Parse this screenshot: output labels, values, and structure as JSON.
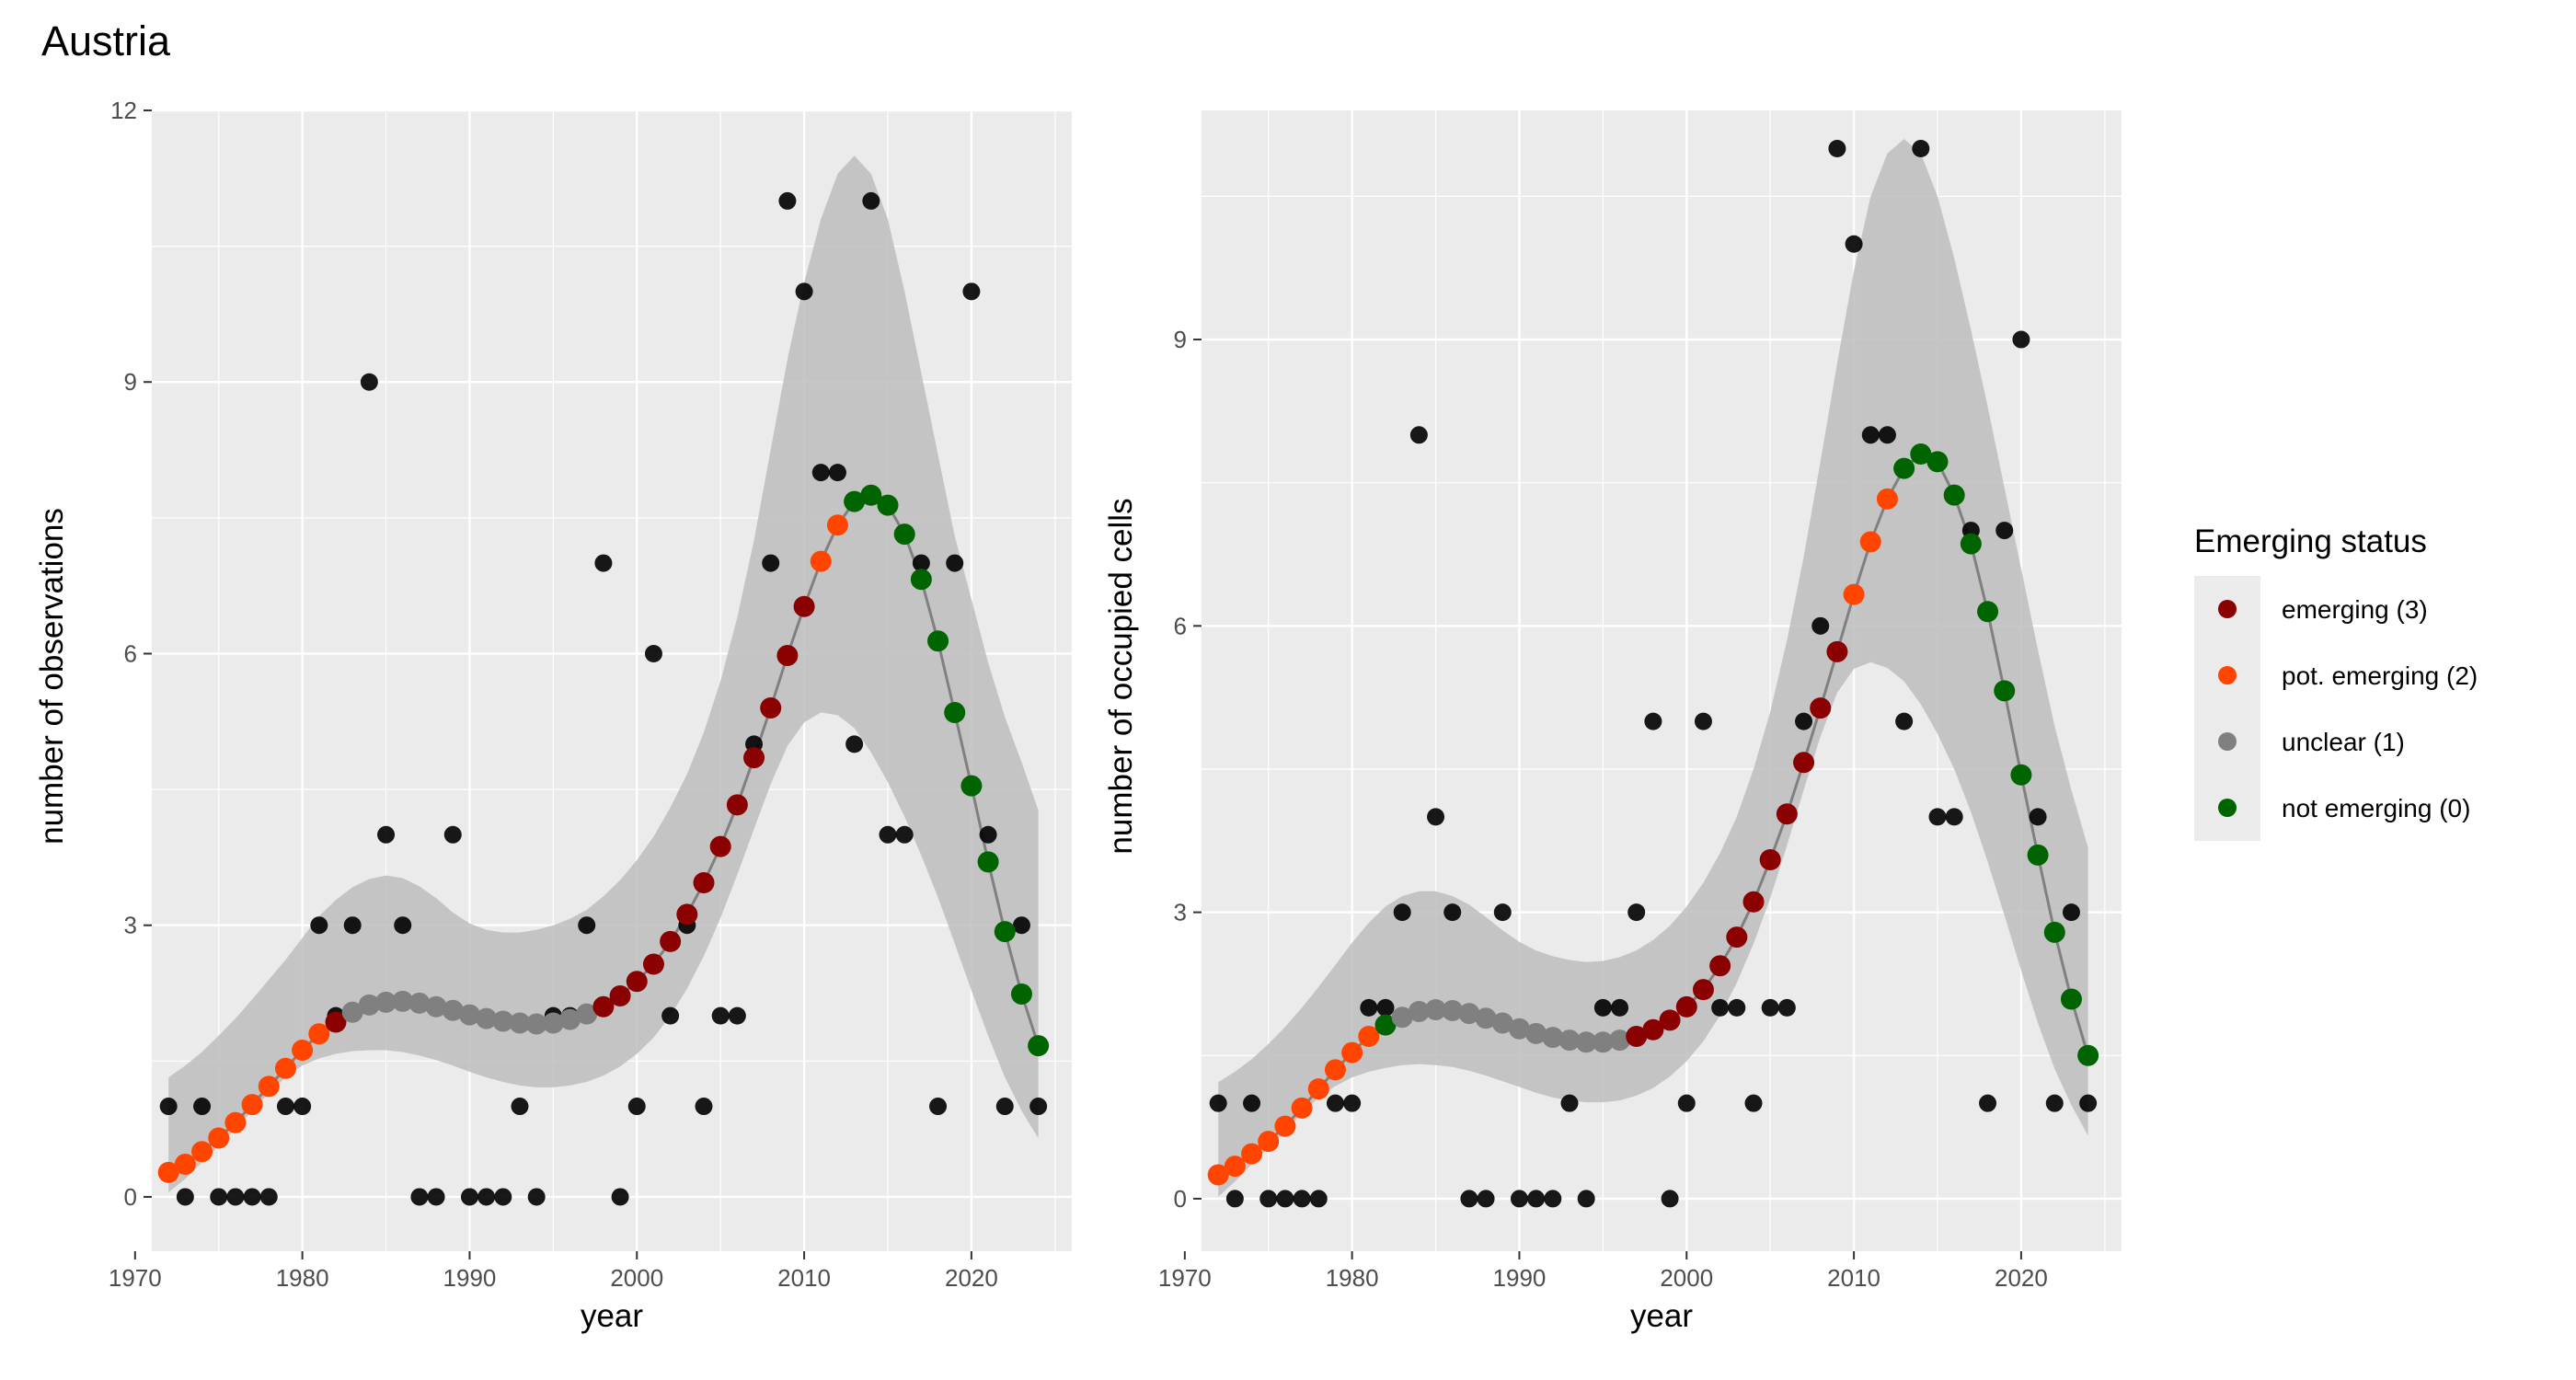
{
  "title": "Austria",
  "legend": {
    "title": "Emerging status",
    "placement": "right",
    "items": [
      {
        "label": "emerging (3)",
        "color": "#8b0000"
      },
      {
        "label": "pot. emerging (2)",
        "color": "#ff4500"
      },
      {
        "label": "unclear (1)",
        "color": "#808080"
      },
      {
        "label": "not emerging (0)",
        "color": "#006400"
      }
    ]
  },
  "colors": {
    "panel_bg": "#ebebeb",
    "grid": "#ffffff",
    "ribbon": "#bdbdbd",
    "trend_line": "#808080",
    "observed_points": "#000000"
  },
  "chart_data": [
    {
      "type": "scatter",
      "xlabel": "year",
      "ylabel": "number of observations",
      "xlim": [
        1971,
        2026
      ],
      "ylim": [
        -0.6,
        12
      ],
      "xticks": [
        1970,
        1980,
        1990,
        2000,
        2010,
        2020
      ],
      "yticks": [
        0,
        3,
        6,
        9,
        12
      ],
      "grid": true,
      "observed": {
        "x": [
          1972,
          1973,
          1974,
          1975,
          1976,
          1977,
          1978,
          1979,
          1980,
          1981,
          1982,
          1983,
          1984,
          1985,
          1986,
          1987,
          1988,
          1989,
          1990,
          1991,
          1992,
          1993,
          1994,
          1995,
          1996,
          1997,
          1998,
          1999,
          2000,
          2001,
          2002,
          2003,
          2004,
          2005,
          2006,
          2007,
          2008,
          2009,
          2010,
          2011,
          2012,
          2013,
          2014,
          2015,
          2016,
          2017,
          2018,
          2019,
          2020,
          2021,
          2022,
          2023,
          2024
        ],
        "y": [
          1,
          0,
          1,
          0,
          0,
          0,
          0,
          1,
          1,
          3,
          2,
          3,
          9,
          4,
          3,
          0,
          0,
          4,
          0,
          0,
          0,
          1,
          0,
          2,
          2,
          3,
          7,
          0,
          1,
          6,
          2,
          3,
          1,
          2,
          2,
          5,
          7,
          11,
          10,
          8,
          8,
          5,
          11,
          4,
          4,
          7,
          1,
          7,
          10,
          4,
          1,
          3,
          1
        ]
      },
      "trend": {
        "x": [
          1972,
          1973,
          1974,
          1975,
          1976,
          1977,
          1978,
          1979,
          1980,
          1981,
          1982,
          1983,
          1984,
          1985,
          1986,
          1987,
          1988,
          1989,
          1990,
          1991,
          1992,
          1993,
          1994,
          1995,
          1996,
          1997,
          1998,
          1999,
          2000,
          2001,
          2002,
          2003,
          2004,
          2005,
          2006,
          2007,
          2008,
          2009,
          2010,
          2011,
          2012,
          2013,
          2014,
          2015,
          2016,
          2017,
          2018,
          2019,
          2020,
          2021,
          2022,
          2023,
          2024
        ],
        "y": [
          0.27,
          0.36,
          0.5,
          0.65,
          0.82,
          1.02,
          1.22,
          1.42,
          1.62,
          1.8,
          1.93,
          2.04,
          2.12,
          2.15,
          2.16,
          2.14,
          2.1,
          2.06,
          2.01,
          1.97,
          1.94,
          1.92,
          1.91,
          1.92,
          1.96,
          2.02,
          2.1,
          2.22,
          2.38,
          2.57,
          2.82,
          3.12,
          3.47,
          3.87,
          4.33,
          4.85,
          5.4,
          5.98,
          6.52,
          7.02,
          7.42,
          7.68,
          7.75,
          7.64,
          7.32,
          6.82,
          6.14,
          5.35,
          4.54,
          3.7,
          2.93,
          2.24,
          1.67
        ],
        "status": [
          2,
          2,
          2,
          2,
          2,
          2,
          2,
          2,
          2,
          2,
          3,
          1,
          1,
          1,
          1,
          1,
          1,
          1,
          1,
          1,
          1,
          1,
          1,
          1,
          1,
          1,
          3,
          3,
          3,
          3,
          3,
          3,
          3,
          3,
          3,
          3,
          3,
          3,
          3,
          2,
          2,
          0,
          0,
          0,
          0,
          0,
          0,
          0,
          0,
          0,
          0,
          0,
          0
        ],
        "ci_lower": [
          0.05,
          0.2,
          0.38,
          0.56,
          0.75,
          0.95,
          1.15,
          1.32,
          1.45,
          1.53,
          1.58,
          1.61,
          1.62,
          1.62,
          1.6,
          1.56,
          1.51,
          1.45,
          1.38,
          1.32,
          1.27,
          1.23,
          1.21,
          1.21,
          1.23,
          1.27,
          1.34,
          1.44,
          1.58,
          1.76,
          2.0,
          2.3,
          2.66,
          3.08,
          3.56,
          4.06,
          4.56,
          4.98,
          5.24,
          5.35,
          5.32,
          5.18,
          4.91,
          4.58,
          4.2,
          3.77,
          3.31,
          2.8,
          2.28,
          1.78,
          1.32,
          0.95,
          0.65
        ],
        "ci_upper": [
          1.32,
          1.45,
          1.6,
          1.78,
          1.97,
          2.18,
          2.4,
          2.62,
          2.86,
          3.1,
          3.28,
          3.42,
          3.51,
          3.55,
          3.52,
          3.43,
          3.3,
          3.14,
          3.02,
          2.95,
          2.92,
          2.92,
          2.95,
          3.0,
          3.07,
          3.17,
          3.32,
          3.5,
          3.72,
          3.98,
          4.3,
          4.67,
          5.13,
          5.7,
          6.4,
          7.25,
          8.25,
          9.25,
          10.1,
          10.8,
          11.3,
          11.5,
          11.3,
          10.8,
          10.0,
          9.1,
          8.2,
          7.3,
          6.6,
          5.9,
          5.3,
          4.8,
          4.27
        ]
      }
    },
    {
      "type": "scatter",
      "xlabel": "year",
      "ylabel": "number of occupied cells",
      "xlim": [
        1971,
        2026
      ],
      "ylim": [
        -0.55,
        11.4
      ],
      "xticks": [
        1970,
        1980,
        1990,
        2000,
        2010,
        2020
      ],
      "yticks": [
        0,
        3,
        6,
        9
      ],
      "grid": true,
      "observed": {
        "x": [
          1972,
          1973,
          1974,
          1975,
          1976,
          1977,
          1978,
          1979,
          1980,
          1981,
          1982,
          1983,
          1984,
          1985,
          1986,
          1987,
          1988,
          1989,
          1990,
          1991,
          1992,
          1993,
          1994,
          1995,
          1996,
          1997,
          1998,
          1999,
          2000,
          2001,
          2002,
          2003,
          2004,
          2005,
          2006,
          2007,
          2008,
          2009,
          2010,
          2011,
          2012,
          2013,
          2014,
          2015,
          2016,
          2017,
          2018,
          2019,
          2020,
          2021,
          2022,
          2023,
          2024
        ],
        "y": [
          1,
          0,
          1,
          0,
          0,
          0,
          0,
          1,
          1,
          2,
          2,
          3,
          8,
          4,
          3,
          0,
          0,
          3,
          0,
          0,
          0,
          1,
          0,
          2,
          2,
          3,
          5,
          0,
          1,
          5,
          2,
          2,
          1,
          2,
          2,
          5,
          6,
          11,
          10,
          8,
          8,
          5,
          11,
          4,
          4,
          7,
          1,
          7,
          9,
          4,
          1,
          3,
          1
        ]
      },
      "trend": {
        "x": [
          1972,
          1973,
          1974,
          1975,
          1976,
          1977,
          1978,
          1979,
          1980,
          1981,
          1982,
          1983,
          1984,
          1985,
          1986,
          1987,
          1988,
          1989,
          1990,
          1991,
          1992,
          1993,
          1994,
          1995,
          1996,
          1997,
          1998,
          1999,
          2000,
          2001,
          2002,
          2003,
          2004,
          2005,
          2006,
          2007,
          2008,
          2009,
          2010,
          2011,
          2012,
          2013,
          2014,
          2015,
          2016,
          2017,
          2018,
          2019,
          2020,
          2021,
          2022,
          2023,
          2024
        ],
        "y": [
          0.25,
          0.34,
          0.47,
          0.6,
          0.76,
          0.95,
          1.15,
          1.35,
          1.53,
          1.7,
          1.82,
          1.9,
          1.96,
          1.98,
          1.97,
          1.94,
          1.89,
          1.84,
          1.78,
          1.73,
          1.69,
          1.66,
          1.64,
          1.64,
          1.66,
          1.7,
          1.77,
          1.87,
          2.01,
          2.19,
          2.44,
          2.74,
          3.11,
          3.55,
          4.03,
          4.57,
          5.14,
          5.73,
          6.33,
          6.88,
          7.33,
          7.65,
          7.8,
          7.72,
          7.37,
          6.86,
          6.15,
          5.32,
          4.44,
          3.6,
          2.79,
          2.09,
          1.5
        ],
        "status": [
          2,
          2,
          2,
          2,
          2,
          2,
          2,
          2,
          2,
          2,
          0,
          1,
          1,
          1,
          1,
          1,
          1,
          1,
          1,
          1,
          1,
          1,
          1,
          1,
          1,
          3,
          3,
          3,
          3,
          3,
          3,
          3,
          3,
          3,
          3,
          3,
          3,
          3,
          2,
          2,
          2,
          0,
          0,
          0,
          0,
          0,
          0,
          0,
          0,
          0,
          0,
          0,
          0
        ],
        "ci_lower": [
          0.02,
          0.18,
          0.36,
          0.53,
          0.71,
          0.89,
          1.06,
          1.18,
          1.27,
          1.33,
          1.37,
          1.4,
          1.41,
          1.4,
          1.38,
          1.34,
          1.29,
          1.23,
          1.17,
          1.11,
          1.06,
          1.03,
          1.01,
          1.01,
          1.03,
          1.08,
          1.16,
          1.28,
          1.44,
          1.65,
          1.92,
          2.26,
          2.67,
          3.15,
          3.7,
          4.28,
          4.84,
          5.3,
          5.55,
          5.62,
          5.56,
          5.42,
          5.18,
          4.87,
          4.5,
          4.05,
          3.53,
          2.97,
          2.39,
          1.84,
          1.36,
          0.98,
          0.66
        ],
        "ci_upper": [
          1.22,
          1.33,
          1.46,
          1.62,
          1.8,
          2.0,
          2.22,
          2.45,
          2.68,
          2.89,
          3.06,
          3.17,
          3.22,
          3.22,
          3.17,
          3.08,
          2.95,
          2.81,
          2.69,
          2.6,
          2.54,
          2.5,
          2.48,
          2.49,
          2.53,
          2.6,
          2.71,
          2.86,
          3.06,
          3.31,
          3.62,
          4.0,
          4.5,
          5.1,
          5.85,
          6.72,
          7.72,
          8.75,
          9.72,
          10.5,
          10.95,
          11.1,
          10.95,
          10.5,
          9.85,
          9.1,
          8.3,
          7.45,
          6.6,
          5.75,
          4.95,
          4.28,
          3.68
        ]
      }
    }
  ]
}
